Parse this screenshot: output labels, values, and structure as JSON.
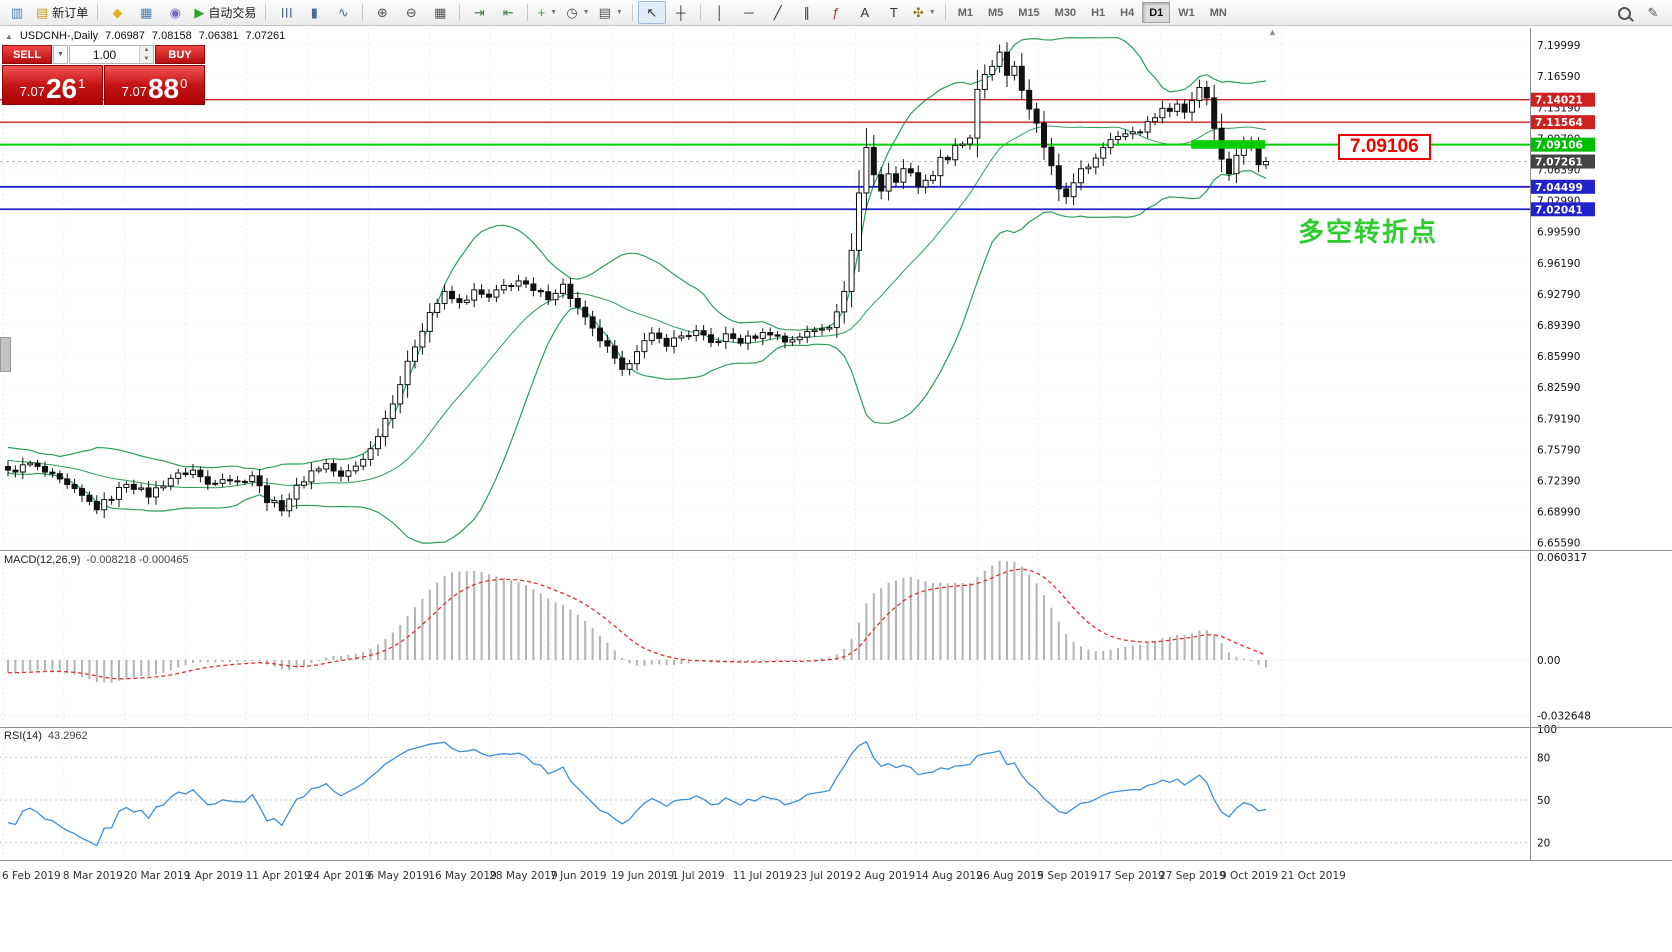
{
  "toolbar": {
    "items": [
      {
        "type": "icon",
        "name": "chart-window-icon",
        "glyph": "▥",
        "color": "#4a7fb5"
      },
      {
        "type": "button",
        "name": "new-order-button",
        "glyph": "▤",
        "color": "#cf9c1e",
        "label": "新订单"
      },
      {
        "type": "sep"
      },
      {
        "type": "button",
        "name": "profiles-button",
        "glyph": "◆",
        "color": "#e2ae27"
      },
      {
        "type": "button",
        "name": "charts-button",
        "glyph": "▦",
        "color": "#4a7fb5"
      },
      {
        "type": "button",
        "name": "community-button",
        "glyph": "◉",
        "color": "#7462c9"
      },
      {
        "type": "button",
        "name": "autotrading-button",
        "glyph": "▶",
        "color": "#2fa32f",
        "label": "自动交易"
      },
      {
        "type": "sep"
      },
      {
        "type": "button",
        "name": "bar-chart-button",
        "glyph": "☰",
        "color": "#4f6b8f",
        "rot": true
      },
      {
        "type": "button",
        "name": "candlestick-chart-button",
        "glyph": "▮",
        "color": "#4f6b8f"
      },
      {
        "type": "button",
        "name": "line-chart-button",
        "glyph": "∿",
        "color": "#4f6b8f"
      },
      {
        "type": "sep"
      },
      {
        "type": "button",
        "name": "zoom-in-button",
        "glyph": "⊕",
        "color": "#555555"
      },
      {
        "type": "button",
        "name": "zoom-out-button",
        "glyph": "⊖",
        "color": "#555555"
      },
      {
        "type": "button",
        "name": "tile-windows-button",
        "glyph": "▦",
        "color": "#555555"
      },
      {
        "type": "sep"
      },
      {
        "type": "button",
        "name": "auto-scroll-button",
        "glyph": "⇥",
        "color": "#3f7f3f"
      },
      {
        "type": "button",
        "name": "chart-shift-button",
        "glyph": "⇤",
        "color": "#3f7f3f"
      },
      {
        "type": "sep"
      },
      {
        "type": "button",
        "name": "indicators-button",
        "glyph": "+",
        "color": "#2fa32f",
        "caret": true
      },
      {
        "type": "button",
        "name": "periods-button",
        "glyph": "◷",
        "color": "#555555",
        "caret": true
      },
      {
        "type": "button",
        "name": "templates-button",
        "glyph": "▤",
        "color": "#555555",
        "caret": true
      },
      {
        "type": "sep"
      },
      {
        "type": "button",
        "name": "cursor-button",
        "glyph": "↖",
        "color": "#333333",
        "active": true
      },
      {
        "type": "button",
        "name": "crosshair-button",
        "glyph": "┼",
        "color": "#333333"
      },
      {
        "type": "sep"
      },
      {
        "type": "button",
        "name": "vertical-line-button",
        "glyph": "│",
        "color": "#333333"
      },
      {
        "type": "button",
        "name": "horizontal-line-button",
        "glyph": "─",
        "color": "#333333"
      },
      {
        "type": "button",
        "name": "trendline-button",
        "glyph": "╱",
        "color": "#333333"
      },
      {
        "type": "button",
        "name": "channel-button",
        "glyph": "∥",
        "color": "#333333"
      },
      {
        "type": "button",
        "name": "fibonacci-button",
        "glyph": "ƒ",
        "color": "#a33333"
      },
      {
        "type": "button",
        "name": "text-button",
        "glyph": "A",
        "color": "#333333"
      },
      {
        "type": "button",
        "name": "text-label-button",
        "glyph": "T",
        "color": "#333333"
      },
      {
        "type": "button",
        "name": "arrows-button",
        "glyph": "✣",
        "color": "#a36a00",
        "caret": true
      },
      {
        "type": "sep"
      },
      {
        "type": "tf",
        "name": "timeframe-m1-button",
        "label": "M1"
      },
      {
        "type": "tf",
        "name": "timeframe-m5-button",
        "label": "M5"
      },
      {
        "type": "tf",
        "name": "timeframe-m15-button",
        "label": "M15"
      },
      {
        "type": "tf",
        "name": "timeframe-m30-button",
        "label": "M30"
      },
      {
        "type": "tf",
        "name": "timeframe-h1-button",
        "label": "H1"
      },
      {
        "type": "tf",
        "name": "timeframe-h4-button",
        "label": "H4"
      },
      {
        "type": "tf",
        "name": "timeframe-d1-button",
        "label": "D1",
        "active": true
      },
      {
        "type": "tf",
        "name": "timeframe-w1-button",
        "label": "W1"
      },
      {
        "type": "tf",
        "name": "timeframe-mn-button",
        "label": "MN"
      }
    ],
    "right_items": [
      {
        "type": "button",
        "name": "search-button",
        "css": "mag"
      },
      {
        "type": "button",
        "name": "feedback-button",
        "glyph": "✎",
        "color": "#555555"
      }
    ]
  },
  "trade_panel": {
    "sell_label": "SELL",
    "buy_label": "BUY",
    "volume": "1.00",
    "sell_price": {
      "base": "7.07",
      "big": "26",
      "pip": "1"
    },
    "buy_price": {
      "base": "7.07",
      "big": "88",
      "pip": "0"
    }
  },
  "chart": {
    "symbol_header": "USDCNH-,Daily",
    "ohlc": {
      "open": "7.06987",
      "high": "7.08158",
      "low": "7.06381",
      "close": "7.07261"
    },
    "callout": "7.09106",
    "annotation": "多空转折点",
    "price_axis_labels": [
      "7.19999",
      "7.16590",
      "7.13190",
      "7.09790",
      "7.06390",
      "7.02990",
      "6.99590",
      "6.96190",
      "6.92790",
      "6.89390",
      "6.85990",
      "6.82590",
      "6.79190",
      "6.75790",
      "6.72390",
      "6.68990",
      "6.65590"
    ],
    "date_labels": [
      "6 Feb 2019",
      "8 Mar 2019",
      "20 Mar 2019",
      "1 Apr 2019",
      "11 Apr 2019",
      "24 Apr 2019",
      "6 May 2019",
      "16 May 2019",
      "28 May 2019",
      "7 Jun 2019",
      "19 Jun 2019",
      "1 Jul 2019",
      "11 Jul 2019",
      "23 Jul 2019",
      "2 Aug 2019",
      "14 Aug 2019",
      "26 Aug 2019",
      "5 Sep 2019",
      "17 Sep 2019",
      "27 Sep 2019",
      "9 Oct 2019",
      "21 Oct 2019"
    ],
    "price_tags": [
      {
        "label": "7.14021",
        "price": 7.14021,
        "bg": "#cc2222"
      },
      {
        "label": "7.11564",
        "price": 7.11564,
        "bg": "#cc2222"
      },
      {
        "label": "7.09106",
        "price": 7.09106,
        "bg": "#00bf00"
      },
      {
        "label": "7.07261",
        "price": 7.07261,
        "bg": "#444444"
      },
      {
        "label": "7.04499",
        "price": 7.04499,
        "bg": "#2222cc"
      },
      {
        "label": "7.02041",
        "price": 7.02041,
        "bg": "#2222cc"
      }
    ],
    "hlines": [
      {
        "price": 7.14021,
        "color": "#cc2222",
        "w": 1.3
      },
      {
        "price": 7.11564,
        "color": "#cc2222",
        "w": 1.3
      },
      {
        "price": 7.09106,
        "color": "#00cf00",
        "w": 2
      },
      {
        "price": 7.04499,
        "color": "#2222cc",
        "w": 1.8
      },
      {
        "price": 7.02041,
        "color": "#2222cc",
        "w": 1.8
      }
    ],
    "current_price": 7.07261,
    "highlight_rect": {
      "i0": 160.3,
      "i1": 170.3,
      "p0": 7.0865,
      "p1": 7.096,
      "color": "#00cc00"
    }
  },
  "indicators": {
    "macd": {
      "title": "MACD(12,26,9)",
      "values": "-0.008218 -0.000465",
      "axis": [
        {
          "label": "0.060317",
          "v": 0.060317
        },
        {
          "label": "0.00",
          "v": 0
        },
        {
          "label": "-0.032648",
          "v": -0.032648
        }
      ]
    },
    "rsi": {
      "title": "RSI(14)",
      "value": "43.2962",
      "axis": [
        {
          "label": "100",
          "v": 100
        },
        {
          "label": "80",
          "v": 80
        },
        {
          "label": "50",
          "v": 50
        },
        {
          "label": "20",
          "v": 20
        }
      ]
    }
  },
  "colors": {
    "band": "#2e9e5b",
    "candle_up": "#ffffff",
    "candle_down": "#111111",
    "candle_stroke": "#111111",
    "macd_hist": "#b4b4b4",
    "macd_signal": "#e03232",
    "rsi_line": "#3d8fd9",
    "grid": "#ededed",
    "axis_text": "#111111",
    "separator": "#909090"
  },
  "chart_data": {
    "type": "candlestick",
    "symbol": "USDCNH",
    "timeframe": "Daily",
    "title": "USDCNH-,Daily",
    "ohlc_current": {
      "open": 7.06987,
      "high": 7.08158,
      "low": 7.06381,
      "close": 7.07261
    },
    "ylim": [
      6.6559,
      7.19999
    ],
    "candle_count": 171,
    "horizontal_levels": [
      7.14021,
      7.11564,
      7.09106,
      7.04499,
      7.02041
    ],
    "overlays": [
      {
        "name": "Bollinger Bands",
        "period": 20,
        "deviation": 2,
        "color": "#2e9e5b"
      }
    ],
    "indicator_panels": [
      {
        "name": "MACD",
        "params": [
          12,
          26,
          9
        ],
        "current_main": -0.008218,
        "current_signal": -0.000465,
        "axis_range": [
          -0.032648,
          0.060317
        ]
      },
      {
        "name": "RSI",
        "params": [
          14
        ],
        "current": 43.2962,
        "levels": [
          20,
          50,
          80
        ],
        "axis_range": [
          0,
          100
        ]
      }
    ],
    "close_anchors": [
      [
        0,
        6.733
      ],
      [
        3,
        6.742
      ],
      [
        6,
        6.728
      ],
      [
        9,
        6.712
      ],
      [
        12,
        6.694
      ],
      [
        14,
        6.706
      ],
      [
        16,
        6.722
      ],
      [
        19,
        6.708
      ],
      [
        22,
        6.727
      ],
      [
        25,
        6.735
      ],
      [
        27,
        6.72
      ],
      [
        29,
        6.728
      ],
      [
        31,
        6.722
      ],
      [
        33,
        6.73
      ],
      [
        35,
        6.703
      ],
      [
        37,
        6.694
      ],
      [
        39,
        6.716
      ],
      [
        41,
        6.734
      ],
      [
        43,
        6.742
      ],
      [
        45,
        6.727
      ],
      [
        47,
        6.74
      ],
      [
        49,
        6.758
      ],
      [
        51,
        6.792
      ],
      [
        53,
        6.83
      ],
      [
        55,
        6.872
      ],
      [
        57,
        6.908
      ],
      [
        59,
        6.928
      ],
      [
        61,
        6.917
      ],
      [
        63,
        6.93
      ],
      [
        65,
        6.923
      ],
      [
        67,
        6.936
      ],
      [
        69,
        6.942
      ],
      [
        71,
        6.93
      ],
      [
        73,
        6.925
      ],
      [
        75,
        6.937
      ],
      [
        77,
        6.912
      ],
      [
        79,
        6.888
      ],
      [
        81,
        6.868
      ],
      [
        83,
        6.842
      ],
      [
        85,
        6.868
      ],
      [
        87,
        6.882
      ],
      [
        89,
        6.874
      ],
      [
        91,
        6.882
      ],
      [
        93,
        6.886
      ],
      [
        95,
        6.874
      ],
      [
        97,
        6.882
      ],
      [
        99,
        6.876
      ],
      [
        101,
        6.882
      ],
      [
        103,
        6.886
      ],
      [
        105,
        6.876
      ],
      [
        107,
        6.882
      ],
      [
        109,
        6.888
      ],
      [
        111,
        6.894
      ],
      [
        113,
        6.928
      ],
      [
        114,
        6.978
      ],
      [
        115,
        7.038
      ],
      [
        116,
        7.088
      ],
      [
        117,
        7.058
      ],
      [
        118,
        7.042
      ],
      [
        119,
        7.06
      ],
      [
        120,
        7.048
      ],
      [
        121,
        7.068
      ],
      [
        123,
        7.048
      ],
      [
        125,
        7.058
      ],
      [
        126,
        7.078
      ],
      [
        127,
        7.072
      ],
      [
        128,
        7.088
      ],
      [
        130,
        7.096
      ],
      [
        131,
        7.148
      ],
      [
        132,
        7.168
      ],
      [
        134,
        7.19
      ],
      [
        135,
        7.164
      ],
      [
        136,
        7.178
      ],
      [
        137,
        7.152
      ],
      [
        138,
        7.132
      ],
      [
        139,
        7.118
      ],
      [
        140,
        7.088
      ],
      [
        141,
        7.066
      ],
      [
        142,
        7.044
      ],
      [
        143,
        7.034
      ],
      [
        144,
        7.052
      ],
      [
        145,
        7.062
      ],
      [
        146,
        7.07
      ],
      [
        147,
        7.076
      ],
      [
        148,
        7.088
      ],
      [
        149,
        7.098
      ],
      [
        151,
        7.104
      ],
      [
        153,
        7.108
      ],
      [
        155,
        7.122
      ],
      [
        156,
        7.132
      ],
      [
        157,
        7.126
      ],
      [
        158,
        7.136
      ],
      [
        159,
        7.13
      ],
      [
        160,
        7.142
      ],
      [
        161,
        7.152
      ],
      [
        162,
        7.144
      ],
      [
        163,
        7.108
      ],
      [
        164,
        7.076
      ],
      [
        165,
        7.062
      ],
      [
        166,
        7.082
      ],
      [
        167,
        7.096
      ],
      [
        168,
        7.086
      ],
      [
        169,
        7.07
      ],
      [
        170,
        7.0726
      ]
    ]
  }
}
